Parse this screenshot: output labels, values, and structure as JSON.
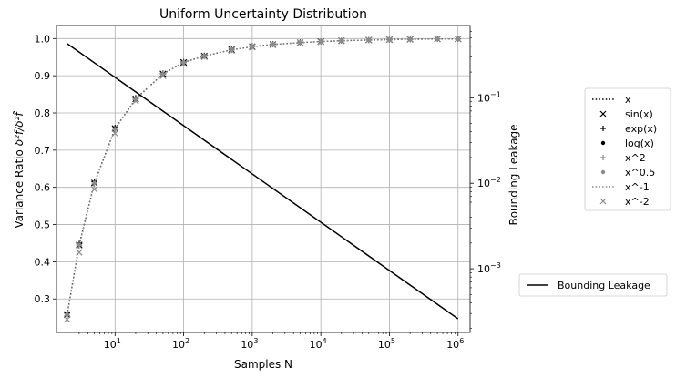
{
  "chart_data": {
    "type": "line",
    "title": "Uniform Uncertainty Distribution",
    "xlabel": "Samples N",
    "ylabel_main": "Variance Ratio",
    "ylabel_symbol": "δ²f/δ²f̂",
    "ylabel_right": "Bounding Leakage",
    "x_scale": "log",
    "xlim": [
      1.4,
      1500000
    ],
    "ylim_left": [
      0.21,
      1.035
    ],
    "ylim_right_log": [
      0.00018,
      0.7
    ],
    "grid": true,
    "x": [
      2,
      3,
      5,
      10,
      20,
      50,
      100,
      200,
      500,
      1000,
      2000,
      5000,
      10000,
      20000,
      50000,
      100000,
      200000,
      500000,
      1000000
    ],
    "x_ticks": [
      {
        "value": 10,
        "base": "10",
        "exp": "1"
      },
      {
        "value": 100,
        "base": "10",
        "exp": "2"
      },
      {
        "value": 1000,
        "base": "10",
        "exp": "3"
      },
      {
        "value": 10000,
        "base": "10",
        "exp": "4"
      },
      {
        "value": 100000,
        "base": "10",
        "exp": "5"
      },
      {
        "value": 1000000,
        "base": "10",
        "exp": "6"
      }
    ],
    "y_ticks_left": [
      "0.3",
      "0.4",
      "0.5",
      "0.6",
      "0.7",
      "0.8",
      "0.9",
      "1.0"
    ],
    "y_ticks_right": [
      {
        "value": 0.1,
        "base": "10",
        "exp": "−1"
      },
      {
        "value": 0.01,
        "base": "10",
        "exp": "−2"
      },
      {
        "value": 0.001,
        "base": "10",
        "exp": "−3"
      }
    ],
    "series": [
      {
        "name": "x",
        "marker": "dotted-line",
        "color": "#000000",
        "values": [
          0.258,
          0.445,
          0.612,
          0.758,
          0.838,
          0.905,
          0.936,
          0.953,
          0.97,
          0.978,
          0.984,
          0.989,
          0.992,
          0.994,
          0.996,
          0.997,
          0.998,
          0.999,
          0.999
        ]
      },
      {
        "name": "sin(x)",
        "marker": "x",
        "color": "#000000",
        "values": [
          0.258,
          0.445,
          0.612,
          0.758,
          0.838,
          0.905,
          0.936,
          0.953,
          0.97,
          0.978,
          0.984,
          0.989,
          0.992,
          0.994,
          0.996,
          0.997,
          0.998,
          0.999,
          0.999
        ]
      },
      {
        "name": "exp(x)",
        "marker": "plus",
        "color": "#000000",
        "values": [
          0.262,
          0.448,
          0.615,
          0.76,
          0.84,
          0.906,
          0.937,
          0.954,
          0.971,
          0.979,
          0.985,
          0.99,
          0.992,
          0.994,
          0.996,
          0.997,
          0.998,
          0.999,
          0.999
        ]
      },
      {
        "name": "log(x)",
        "marker": "dot",
        "color": "#000000",
        "values": [
          0.26,
          0.447,
          0.613,
          0.759,
          0.839,
          0.905,
          0.936,
          0.953,
          0.97,
          0.978,
          0.984,
          0.989,
          0.992,
          0.994,
          0.996,
          0.997,
          0.998,
          0.999,
          0.999
        ]
      },
      {
        "name": "x^2",
        "marker": "plus",
        "color": "#8c8c8c",
        "values": [
          0.256,
          0.443,
          0.609,
          0.755,
          0.836,
          0.904,
          0.935,
          0.952,
          0.969,
          0.978,
          0.984,
          0.989,
          0.992,
          0.994,
          0.996,
          0.997,
          0.998,
          0.999,
          0.999
        ]
      },
      {
        "name": "x^0.5",
        "marker": "dot",
        "color": "#8c8c8c",
        "values": [
          0.259,
          0.446,
          0.612,
          0.757,
          0.838,
          0.905,
          0.936,
          0.953,
          0.97,
          0.978,
          0.984,
          0.989,
          0.992,
          0.994,
          0.996,
          0.997,
          0.998,
          0.999,
          0.999
        ]
      },
      {
        "name": "x^-1",
        "marker": "dotted-line",
        "color": "#8c8c8c",
        "values": [
          0.257,
          0.444,
          0.611,
          0.757,
          0.837,
          0.905,
          0.936,
          0.953,
          0.97,
          0.978,
          0.984,
          0.989,
          0.992,
          0.994,
          0.996,
          0.997,
          0.998,
          0.999,
          0.999
        ]
      },
      {
        "name": "x^-2",
        "marker": "x",
        "color": "#8c8c8c",
        "values": [
          0.245,
          0.425,
          0.595,
          0.745,
          0.832,
          0.9,
          0.932,
          0.951,
          0.968,
          0.977,
          0.983,
          0.989,
          0.991,
          0.994,
          0.996,
          0.997,
          0.998,
          0.999,
          0.999
        ]
      }
    ],
    "right_series": {
      "name": "Bounding Leakage",
      "color": "#000000",
      "x": [
        2,
        1000000
      ],
      "values": [
        0.43,
        0.00026
      ]
    },
    "legend_main_placement": "right, outside plot, upper",
    "legend_right_placement": "right, outside plot, lower"
  }
}
